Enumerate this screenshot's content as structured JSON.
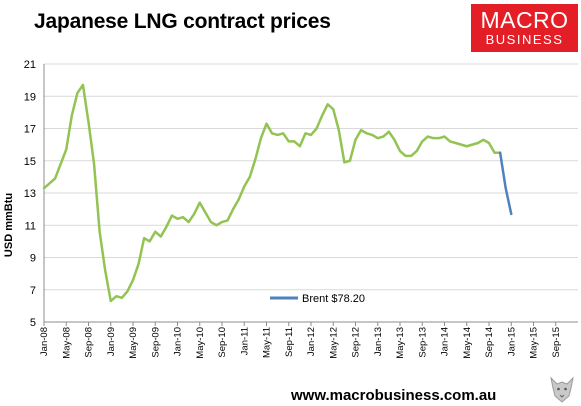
{
  "header": {
    "title": "Japanese LNG contract prices",
    "logo_line1": "MACRO",
    "logo_line2": "BUSINESS"
  },
  "footer": {
    "url": "www.macrobusiness.com.au"
  },
  "colors": {
    "lng": "#92c353",
    "brent": "#4f81bd",
    "brand": "#e31e26"
  },
  "icons": {
    "logo_mascot": "wolf-icon"
  },
  "chart_data": {
    "type": "line",
    "title": "Japanese LNG contract prices",
    "xlabel": "",
    "ylabel": "USD mmBtu",
    "ylim": [
      5,
      21
    ],
    "yticks": [
      5,
      7,
      9,
      11,
      13,
      15,
      17,
      19,
      21
    ],
    "grid": true,
    "legend_position": "bottom-center",
    "x_tick_labels": [
      "Jan-08",
      "May-08",
      "Sep-08",
      "Jan-09",
      "May-09",
      "Sep-09",
      "Jan-10",
      "May-10",
      "Sep-10",
      "Jan-11",
      "May-11",
      "Sep-11",
      "Jan-12",
      "May-12",
      "Sep-12",
      "Jan-13",
      "May-13",
      "Sep-13",
      "Jan-14",
      "May-14",
      "Sep-14",
      "Jan-15",
      "May-15",
      "Sep-15"
    ],
    "x": [
      "Jan-08",
      "Feb-08",
      "Mar-08",
      "Apr-08",
      "May-08",
      "Jun-08",
      "Jul-08",
      "Aug-08",
      "Sep-08",
      "Oct-08",
      "Nov-08",
      "Dec-08",
      "Jan-09",
      "Feb-09",
      "Mar-09",
      "Apr-09",
      "May-09",
      "Jun-09",
      "Jul-09",
      "Aug-09",
      "Sep-09",
      "Oct-09",
      "Nov-09",
      "Dec-09",
      "Jan-10",
      "Feb-10",
      "Mar-10",
      "Apr-10",
      "May-10",
      "Jun-10",
      "Jul-10",
      "Aug-10",
      "Sep-10",
      "Oct-10",
      "Nov-10",
      "Dec-10",
      "Jan-11",
      "Feb-11",
      "Mar-11",
      "Apr-11",
      "May-11",
      "Jun-11",
      "Jul-11",
      "Aug-11",
      "Sep-11",
      "Oct-11",
      "Nov-11",
      "Dec-11",
      "Jan-12",
      "Feb-12",
      "Mar-12",
      "Apr-12",
      "May-12",
      "Jun-12",
      "Jul-12",
      "Aug-12",
      "Sep-12",
      "Oct-12",
      "Nov-12",
      "Dec-12",
      "Jan-13",
      "Feb-13",
      "Mar-13",
      "Apr-13",
      "May-13",
      "Jun-13",
      "Jul-13",
      "Aug-13",
      "Sep-13",
      "Oct-13",
      "Nov-13",
      "Dec-13",
      "Jan-14",
      "Feb-14",
      "Mar-14",
      "Apr-14",
      "May-14",
      "Jun-14",
      "Jul-14",
      "Aug-14",
      "Sep-14",
      "Oct-14",
      "Nov-14",
      "Dec-14",
      "Jan-15"
    ],
    "series": [
      {
        "name": "",
        "color": "#92c353",
        "values": [
          13.3,
          13.6,
          13.9,
          14.8,
          15.7,
          17.8,
          19.2,
          19.7,
          17.4,
          14.8,
          10.6,
          8.2,
          6.3,
          6.6,
          6.5,
          6.9,
          7.6,
          8.6,
          10.2,
          10.0,
          10.6,
          10.3,
          10.9,
          11.6,
          11.4,
          11.5,
          11.2,
          11.7,
          12.4,
          11.8,
          11.2,
          11.0,
          11.2,
          11.3,
          12.0,
          12.6,
          13.4,
          14.0,
          15.1,
          16.4,
          17.3,
          16.7,
          16.6,
          16.7,
          16.2,
          16.2,
          15.9,
          16.7,
          16.6,
          17.0,
          17.8,
          18.5,
          18.2,
          16.9,
          14.9,
          15.0,
          16.3,
          16.9,
          16.7,
          16.6,
          16.4,
          16.5,
          16.8,
          16.3,
          15.6,
          15.3,
          15.3,
          15.6,
          16.2,
          16.5,
          16.4,
          16.4,
          16.5,
          16.2,
          16.1,
          16.0,
          15.9,
          16.0,
          16.1,
          16.3,
          16.1,
          15.5,
          15.5,
          null,
          null
        ]
      },
      {
        "name": "Brent $78.20",
        "color": "#4f81bd",
        "values": [
          null,
          null,
          null,
          null,
          null,
          null,
          null,
          null,
          null,
          null,
          null,
          null,
          null,
          null,
          null,
          null,
          null,
          null,
          null,
          null,
          null,
          null,
          null,
          null,
          null,
          null,
          null,
          null,
          null,
          null,
          null,
          null,
          null,
          null,
          null,
          null,
          null,
          null,
          null,
          null,
          null,
          null,
          null,
          null,
          null,
          null,
          null,
          null,
          null,
          null,
          null,
          null,
          null,
          null,
          null,
          null,
          null,
          null,
          null,
          null,
          null,
          null,
          null,
          null,
          null,
          null,
          null,
          null,
          null,
          null,
          null,
          null,
          null,
          null,
          null,
          null,
          null,
          null,
          null,
          null,
          null,
          null,
          15.5,
          13.3,
          11.7
        ]
      }
    ]
  }
}
